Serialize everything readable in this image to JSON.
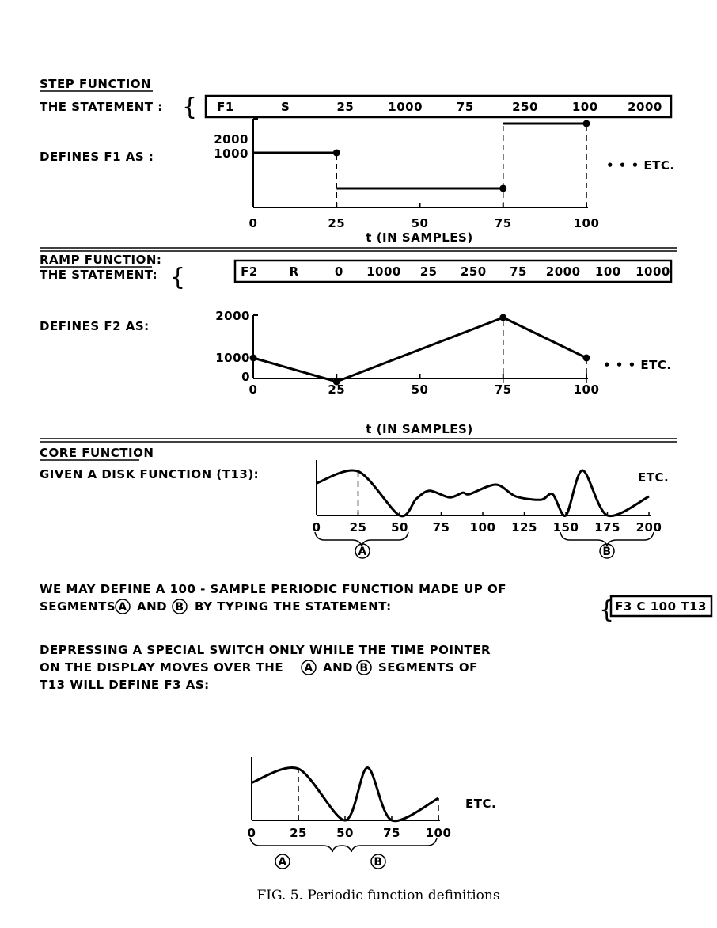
{
  "step": {
    "heading": "STEP FUNCTION",
    "statement_label": "THE STATEMENT :",
    "statement_tokens": [
      "F1",
      "S",
      "25",
      "1000",
      "75",
      "250",
      "100",
      "2000"
    ],
    "defines_label": "DEFINES F1 AS :",
    "etc": "• • • ETC.",
    "xlabel": "t (IN SAMPLES)"
  },
  "ramp": {
    "heading": "RAMP FUNCTION:",
    "statement_label": "THE STATEMENT:",
    "statement_tokens": [
      "F2",
      "R",
      "0",
      "1000",
      "25",
      "250",
      "75",
      "2000",
      "100",
      "1000"
    ],
    "defines_label": "DEFINES F2 AS:",
    "etc": "• • • ETC.",
    "xlabel": "t (IN SAMPLES)"
  },
  "core": {
    "heading": "CORE FUNCTION",
    "given_label": "GIVEN A DISK FUNCTION (T13):",
    "etc": "ETC.",
    "segment_a": "A",
    "segment_b": "B",
    "line1": "WE MAY DEFINE A 100 - SAMPLE PERIODIC FUNCTION MADE UP OF",
    "line2_pre": "SEGMENTS",
    "line2_and": "AND",
    "line2_post": "BY TYPING THE STATEMENT:",
    "statement": "F3 C 100 T13",
    "para2_line1": "DEPRESSING A SPECIAL SWITCH ONLY WHILE THE TIME POINTER",
    "para2_line2_pre": "ON THE DISPLAY MOVES OVER THE",
    "para2_line2_and": "AND",
    "para2_line2_post": "SEGMENTS OF",
    "para2_line3": "T13 WILL DEFINE F3 AS:",
    "result_etc": "ETC."
  },
  "caption": "FIG. 5.  Periodic function definitions",
  "chart_data": [
    {
      "type": "line",
      "name_in_figure": "F1",
      "xlabel": "t (IN SAMPLES)",
      "xticks": [
        "0",
        "25",
        "50",
        "75",
        "100"
      ],
      "yticks": [
        "1000",
        "2000"
      ],
      "xlim": [
        0,
        100
      ],
      "ylim": [
        0,
        2000
      ],
      "segments": [
        {
          "x": [
            0,
            25
          ],
          "y": [
            1000,
            1000
          ]
        },
        {
          "x": [
            25,
            75
          ],
          "y": [
            250,
            250
          ]
        },
        {
          "x": [
            75,
            100
          ],
          "y": [
            2000,
            2000
          ]
        }
      ]
    },
    {
      "type": "line",
      "name_in_figure": "F2",
      "xlabel": "t (IN SAMPLES)",
      "xticks": [
        "0",
        "25",
        "50",
        "75",
        "100"
      ],
      "yticks": [
        "0",
        "1000",
        "2000"
      ],
      "xlim": [
        0,
        100
      ],
      "ylim": [
        0,
        2000
      ],
      "x": [
        0,
        25,
        75,
        100
      ],
      "y": [
        1000,
        250,
        2000,
        1000
      ]
    },
    {
      "type": "line",
      "name_in_figure": "T13",
      "xticks": [
        "0",
        "25",
        "50",
        "75",
        "100",
        "125",
        "150",
        "175",
        "200"
      ],
      "xlim": [
        0,
        200
      ],
      "x": [
        0,
        25,
        50,
        60,
        68,
        80,
        88,
        92,
        108,
        120,
        135,
        142,
        150,
        160,
        175,
        200
      ],
      "y": [
        0.68,
        0.93,
        0,
        0.35,
        0.52,
        0.38,
        0.48,
        0.45,
        0.65,
        0.4,
        0.33,
        0.45,
        0,
        0.95,
        0,
        0.4
      ]
    },
    {
      "type": "line",
      "name_in_figure": "F3",
      "xticks": [
        "0",
        "25",
        "50",
        "75",
        "100"
      ],
      "xlim": [
        0,
        100
      ],
      "x": [
        0,
        25,
        50,
        62,
        75,
        100
      ],
      "y": [
        0.68,
        0.93,
        0,
        0.95,
        0,
        0.4
      ]
    }
  ]
}
